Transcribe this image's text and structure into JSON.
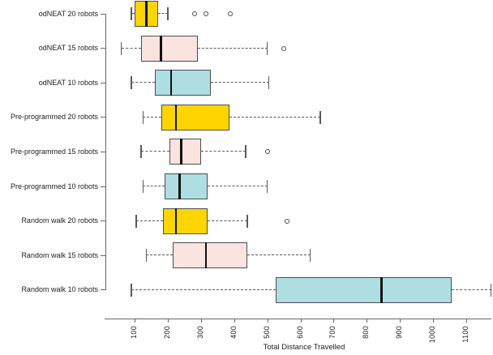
{
  "chart_data": {
    "type": "boxplot",
    "orientation": "horizontal",
    "title": "",
    "xlabel": "Total Distance Travelled",
    "ylabel": "",
    "x_ticks": [
      100,
      200,
      300,
      400,
      500,
      600,
      700,
      800,
      900,
      1000,
      1100
    ],
    "xlim": [
      55,
      1185
    ],
    "grid": false,
    "legend": "none",
    "colors": {
      "gold": "#FFD500",
      "pink": "#FBE3DF",
      "blue": "#AEDEE2",
      "box_border": "#4d4d4d",
      "median": "#111111",
      "whisker": "#5a5a5a",
      "axis": "#666666"
    },
    "series": [
      {
        "label": "odNEAT 20 robots",
        "color": "#FFD500",
        "min": 90,
        "q1": 100,
        "median": 135,
        "q3": 170,
        "max": 200,
        "outliers": [
          280,
          315,
          388
        ]
      },
      {
        "label": "odNEAT 15 robots",
        "color": "#FBE3DF",
        "min": 60,
        "q1": 120,
        "median": 180,
        "q3": 290,
        "max": 500,
        "outliers": [
          550
        ]
      },
      {
        "label": "odNEAT 10 robots",
        "color": "#AEDEE2",
        "min": 90,
        "q1": 160,
        "median": 210,
        "q3": 330,
        "max": 505,
        "outliers": []
      },
      {
        "label": "Pre-programmed 20 robots",
        "color": "#FFD500",
        "min": 125,
        "q1": 180,
        "median": 225,
        "q3": 385,
        "max": 660,
        "outliers": []
      },
      {
        "label": "Pre-programmed 15 robots",
        "color": "#FBE3DF",
        "min": 120,
        "q1": 205,
        "median": 240,
        "q3": 300,
        "max": 435,
        "outliers": [
          500
        ]
      },
      {
        "label": "Pre-programmed 10 robots",
        "color": "#AEDEE2",
        "min": 125,
        "q1": 190,
        "median": 235,
        "q3": 320,
        "max": 500,
        "outliers": []
      },
      {
        "label": "Random walk 20 robots",
        "color": "#FFD500",
        "min": 105,
        "q1": 185,
        "median": 225,
        "q3": 320,
        "max": 440,
        "outliers": [
          560
        ]
      },
      {
        "label": "Random walk 15 robots",
        "color": "#FBE3DF",
        "min": 135,
        "q1": 215,
        "median": 315,
        "q3": 440,
        "max": 630,
        "outliers": []
      },
      {
        "label": "Random walk 10 robots",
        "color": "#AEDEE2",
        "min": 90,
        "q1": 525,
        "median": 845,
        "q3": 1055,
        "max": 1175,
        "outliers": []
      }
    ]
  }
}
